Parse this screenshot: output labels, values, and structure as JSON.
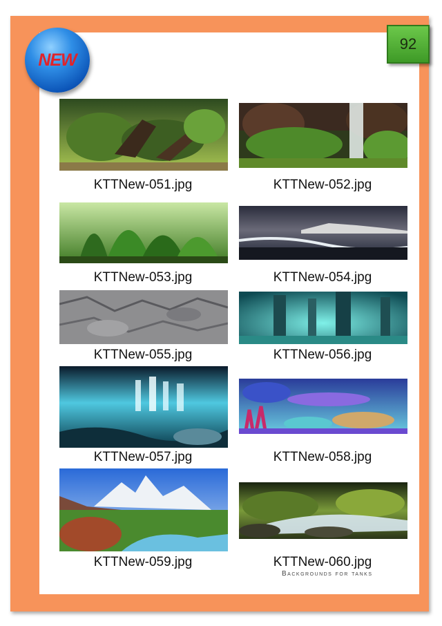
{
  "badge": {
    "label": "NEW"
  },
  "page_number": "92",
  "items": [
    {
      "caption": "KTTNew-051.jpg",
      "icon": "aquascape-driftwood-image"
    },
    {
      "caption": "KTTNew-052.jpg",
      "icon": "forest-waterfall-image"
    },
    {
      "caption": "KTTNew-053.jpg",
      "icon": "planted-tank-image"
    },
    {
      "caption": "KTTNew-054.jpg",
      "icon": "beach-seascape-image"
    },
    {
      "caption": "KTTNew-055.jpg",
      "icon": "rock-wall-image"
    },
    {
      "caption": "KTTNew-056.jpg",
      "icon": "underwater-cave-image"
    },
    {
      "caption": "KTTNew-057.jpg",
      "icon": "underwater-light-rays-image"
    },
    {
      "caption": "KTTNew-058.jpg",
      "icon": "coral-reef-image"
    },
    {
      "caption": "KTTNew-059.jpg",
      "icon": "mountain-river-image"
    },
    {
      "caption": "KTTNew-060.jpg",
      "icon": "forest-stream-image"
    }
  ],
  "footer": {
    "brand": "Backgrounds for tanks"
  }
}
